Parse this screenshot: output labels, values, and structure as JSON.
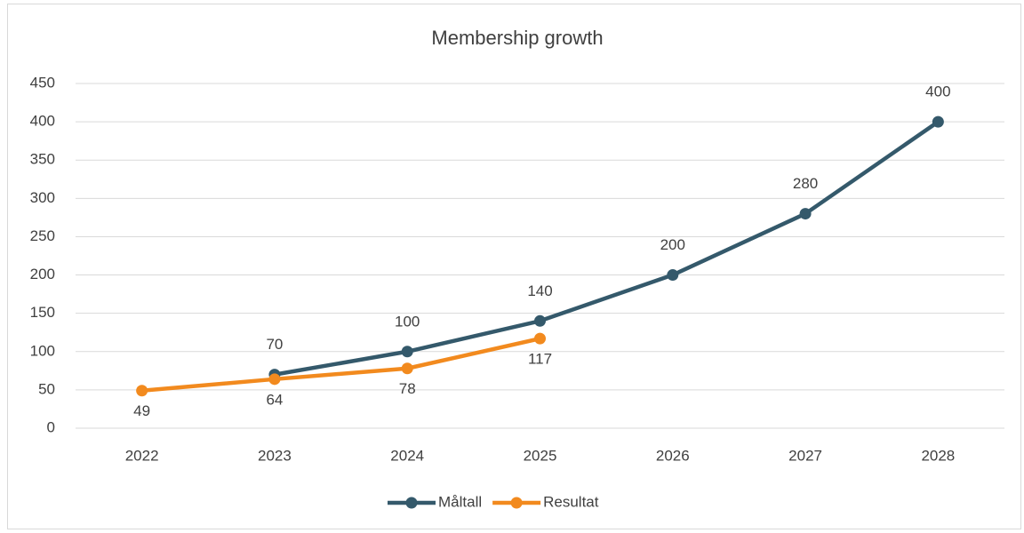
{
  "chart_data": {
    "type": "line",
    "title": "Membership growth",
    "categories": [
      "2022",
      "2023",
      "2024",
      "2025",
      "2026",
      "2027",
      "2028"
    ],
    "series": [
      {
        "name": "Måltall",
        "color": "#34596b",
        "values": [
          null,
          70,
          100,
          140,
          200,
          280,
          400
        ]
      },
      {
        "name": "Resultat",
        "color": "#f28a1e",
        "values": [
          49,
          64,
          78,
          117,
          null,
          null,
          null
        ]
      }
    ],
    "ylim": [
      0,
      450
    ],
    "yticks": [
      0,
      50,
      100,
      150,
      200,
      250,
      300,
      350,
      400,
      450
    ],
    "grid": true,
    "legend": "bottom"
  }
}
